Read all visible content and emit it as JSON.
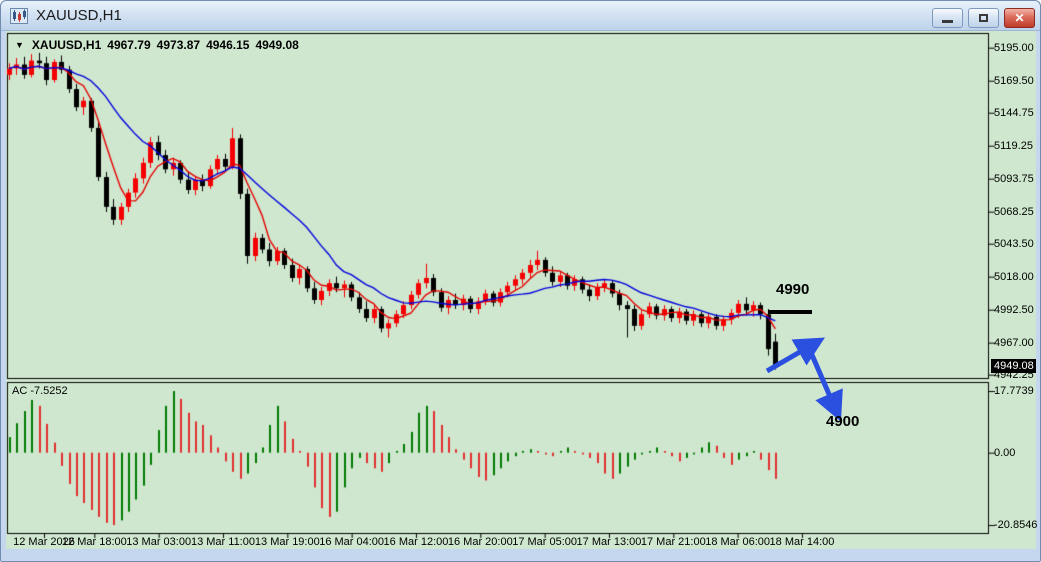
{
  "window": {
    "title": "XAUUSD,H1"
  },
  "titlebar_icons": {
    "app": "candlestick-chart-icon",
    "minimize": "minimize-icon",
    "restore": "restore-icon",
    "close": "close-icon"
  },
  "header": {
    "dropdown_icon": "▼",
    "symbol": "XAUUSD,H1",
    "open": "4967.79",
    "high": "4973.87",
    "low": "4946.15",
    "close": "4949.08"
  },
  "colors": {
    "chart_bg": "#cfe7cf",
    "bull": "#f40000",
    "bear": "#000000",
    "ma_fast": "#e60000",
    "ma_slow": "#0000dc",
    "ac_up": "#007a00",
    "ac_down": "#e03030",
    "arrow": "#2b50e0",
    "badge_bg": "#000000",
    "badge_text": "#ffffff"
  },
  "chart_data": {
    "type": "candlestick",
    "title": "XAUUSD,H1",
    "symbol": "XAUUSD",
    "timeframe": "H1",
    "price_axis": {
      "ticks": [
        "5195.00",
        "5169.50",
        "5144.75",
        "5119.25",
        "5093.75",
        "5068.25",
        "5043.50",
        "5018.00",
        "4992.50",
        "4967.00",
        "4942.25"
      ],
      "current_price": "4949.08"
    },
    "time_axis": {
      "labels": [
        "12 Mar 2026",
        "12 Mar 18:00",
        "13 Mar 03:00",
        "13 Mar 11:00",
        "13 Mar 19:00",
        "16 Mar 04:00",
        "16 Mar 12:00",
        "16 Mar 20:00",
        "17 Mar 05:00",
        "17 Mar 13:00",
        "17 Mar 21:00",
        "18 Mar 06:00",
        "18 Mar 14:00"
      ]
    },
    "candles": [
      [
        5174,
        5183,
        5170,
        5179
      ],
      [
        5179,
        5187,
        5174,
        5182
      ],
      [
        5182,
        5188,
        5171,
        5174
      ],
      [
        5174,
        5190,
        5172,
        5185
      ],
      [
        5185,
        5191,
        5179,
        5183
      ],
      [
        5183,
        5188,
        5166,
        5170
      ],
      [
        5170,
        5186,
        5168,
        5184
      ],
      [
        5184,
        5189,
        5175,
        5178
      ],
      [
        5178,
        5181,
        5160,
        5163
      ],
      [
        5163,
        5167,
        5146,
        5149
      ],
      [
        5149,
        5157,
        5143,
        5154
      ],
      [
        5154,
        5156,
        5130,
        5133
      ],
      [
        5133,
        5138,
        5092,
        5095
      ],
      [
        5095,
        5099,
        5068,
        5072
      ],
      [
        5072,
        5078,
        5058,
        5062
      ],
      [
        5062,
        5075,
        5058,
        5072
      ],
      [
        5072,
        5086,
        5068,
        5083
      ],
      [
        5083,
        5098,
        5079,
        5094
      ],
      [
        5094,
        5110,
        5090,
        5106
      ],
      [
        5106,
        5126,
        5102,
        5122
      ],
      [
        5122,
        5127,
        5108,
        5112
      ],
      [
        5112,
        5116,
        5098,
        5101
      ],
      [
        5101,
        5110,
        5096,
        5106
      ],
      [
        5106,
        5108,
        5090,
        5093
      ],
      [
        5093,
        5099,
        5082,
        5085
      ],
      [
        5085,
        5096,
        5081,
        5093
      ],
      [
        5093,
        5097,
        5084,
        5088
      ],
      [
        5088,
        5104,
        5086,
        5101
      ],
      [
        5101,
        5112,
        5097,
        5109
      ],
      [
        5109,
        5113,
        5099,
        5103
      ],
      [
        5103,
        5133,
        5101,
        5125
      ],
      [
        5125,
        5128,
        5078,
        5082
      ],
      [
        5082,
        5086,
        5028,
        5034
      ],
      [
        5034,
        5052,
        5030,
        5048
      ],
      [
        5048,
        5051,
        5036,
        5039
      ],
      [
        5039,
        5044,
        5026,
        5030
      ],
      [
        5030,
        5041,
        5027,
        5038
      ],
      [
        5038,
        5040,
        5024,
        5027
      ],
      [
        5027,
        5032,
        5014,
        5017
      ],
      [
        5017,
        5027,
        5012,
        5024
      ],
      [
        5024,
        5026,
        5006,
        5009
      ],
      [
        5009,
        5014,
        4997,
        5000
      ],
      [
        5000,
        5010,
        4996,
        5007
      ],
      [
        5007,
        5016,
        5003,
        5013
      ],
      [
        5013,
        5018,
        5006,
        5009
      ],
      [
        5009,
        5015,
        5002,
        5012
      ],
      [
        5012,
        5014,
        4999,
        5002
      ],
      [
        5002,
        5006,
        4990,
        4993
      ],
      [
        4993,
        4999,
        4983,
        4986
      ],
      [
        4986,
        4996,
        4982,
        4993
      ],
      [
        4993,
        4995,
        4975,
        4978
      ],
      [
        4978,
        4985,
        4971,
        4982
      ],
      [
        4982,
        4992,
        4979,
        4989
      ],
      [
        4989,
        4999,
        4986,
        4996
      ],
      [
        4996,
        5007,
        4993,
        5004
      ],
      [
        5004,
        5016,
        5001,
        5013
      ],
      [
        5013,
        5028,
        5009,
        5017
      ],
      [
        5017,
        5020,
        5003,
        5006
      ],
      [
        5006,
        5009,
        4991,
        4994
      ],
      [
        4994,
        5003,
        4989,
        5000
      ],
      [
        5000,
        5005,
        4993,
        4996
      ],
      [
        4996,
        5004,
        4992,
        5001
      ],
      [
        5001,
        5003,
        4990,
        4993
      ],
      [
        4993,
        5002,
        4989,
        4999
      ],
      [
        4999,
        5008,
        4996,
        5005
      ],
      [
        5005,
        5007,
        4995,
        4998
      ],
      [
        4998,
        5009,
        4995,
        5006
      ],
      [
        5006,
        5014,
        5002,
        5011
      ],
      [
        5011,
        5019,
        5007,
        5016
      ],
      [
        5016,
        5024,
        5012,
        5021
      ],
      [
        5021,
        5031,
        5017,
        5027
      ],
      [
        5027,
        5038,
        5023,
        5031
      ],
      [
        5031,
        5033,
        5018,
        5021
      ],
      [
        5021,
        5026,
        5011,
        5014
      ],
      [
        5014,
        5022,
        5010,
        5019
      ],
      [
        5019,
        5021,
        5008,
        5011
      ],
      [
        5011,
        5019,
        5007,
        5016
      ],
      [
        5016,
        5018,
        5005,
        5008
      ],
      [
        5008,
        5012,
        4999,
        5003
      ],
      [
        5003,
        5013,
        5000,
        5010
      ],
      [
        5010,
        5016,
        5006,
        5013
      ],
      [
        5013,
        5015,
        5002,
        5005
      ],
      [
        5005,
        5008,
        4992,
        4996
      ],
      [
        4996,
        4999,
        4971,
        4993
      ],
      [
        4993,
        4996,
        4976,
        4980
      ],
      [
        4980,
        4992,
        4977,
        4989
      ],
      [
        4989,
        4998,
        4986,
        4995
      ],
      [
        4995,
        4997,
        4985,
        4988
      ],
      [
        4988,
        4996,
        4984,
        4993
      ],
      [
        4993,
        4995,
        4983,
        4986
      ],
      [
        4986,
        4994,
        4982,
        4991
      ],
      [
        4991,
        4993,
        4981,
        4984
      ],
      [
        4984,
        4992,
        4980,
        4989
      ],
      [
        4989,
        4991,
        4979,
        4982
      ],
      [
        4982,
        4990,
        4978,
        4987
      ],
      [
        4987,
        4989,
        4977,
        4980
      ],
      [
        4980,
        4988,
        4976,
        4985
      ],
      [
        4985,
        4993,
        4981,
        4990
      ],
      [
        4990,
        5000,
        4986,
        4997
      ],
      [
        4997,
        5002,
        4988,
        4992
      ],
      [
        4992,
        4999,
        4987,
        4996
      ],
      [
        4996,
        4998,
        4985,
        4989
      ],
      [
        4989,
        4993,
        4957,
        4962
      ],
      [
        4967.79,
        4973.87,
        4946.15,
        4949.08
      ]
    ],
    "moving_averages": [
      {
        "name": "fast-ma",
        "period": 5,
        "color": "#e60000"
      },
      {
        "name": "slow-ma",
        "period": 14,
        "color": "#0000dc"
      }
    ],
    "indicator": {
      "name": "Accelerator Oscillator",
      "label": "AC -7.5252",
      "value": -7.5252,
      "ticks": [
        "17.7739",
        "0.00",
        "-20.8546"
      ],
      "values": [
        4.5,
        8.5,
        12,
        15.2,
        13.5,
        8.3,
        2.9,
        -3.8,
        -9,
        -12.5,
        -14.5,
        -16.5,
        -18.5,
        -20.2,
        -20.85,
        -19.5,
        -17,
        -13.5,
        -9.5,
        -3.5,
        6.5,
        13.5,
        17.77,
        15.5,
        11.5,
        9,
        8,
        5,
        1.5,
        -2.5,
        -5.5,
        -7.5,
        -6,
        -3,
        1.5,
        8,
        13.5,
        9,
        4,
        0.5,
        -4,
        -10,
        -16,
        -18.5,
        -17,
        -10,
        -4.5,
        -1.5,
        -3,
        -4.5,
        -5.5,
        -3,
        0.5,
        2.5,
        6,
        11.5,
        13.5,
        12,
        8,
        4.5,
        1,
        -2,
        -4.5,
        -7,
        -8,
        -6.5,
        -4.5,
        -2.5,
        -1,
        0.5,
        1,
        0.5,
        -0.5,
        -1,
        0.5,
        1.5,
        0.5,
        -0.5,
        -1.5,
        -3,
        -6,
        -7.5,
        -6,
        -4,
        -2,
        -0.5,
        0.5,
        1.5,
        0.5,
        -1,
        -2.5,
        -1.5,
        -0.5,
        1.5,
        3,
        2,
        -1.5,
        -3.5,
        -2,
        -1,
        0.5,
        -2,
        -5,
        -7.5252
      ]
    },
    "annotations": {
      "resistance_label": "4990",
      "target_label": "4900"
    }
  }
}
